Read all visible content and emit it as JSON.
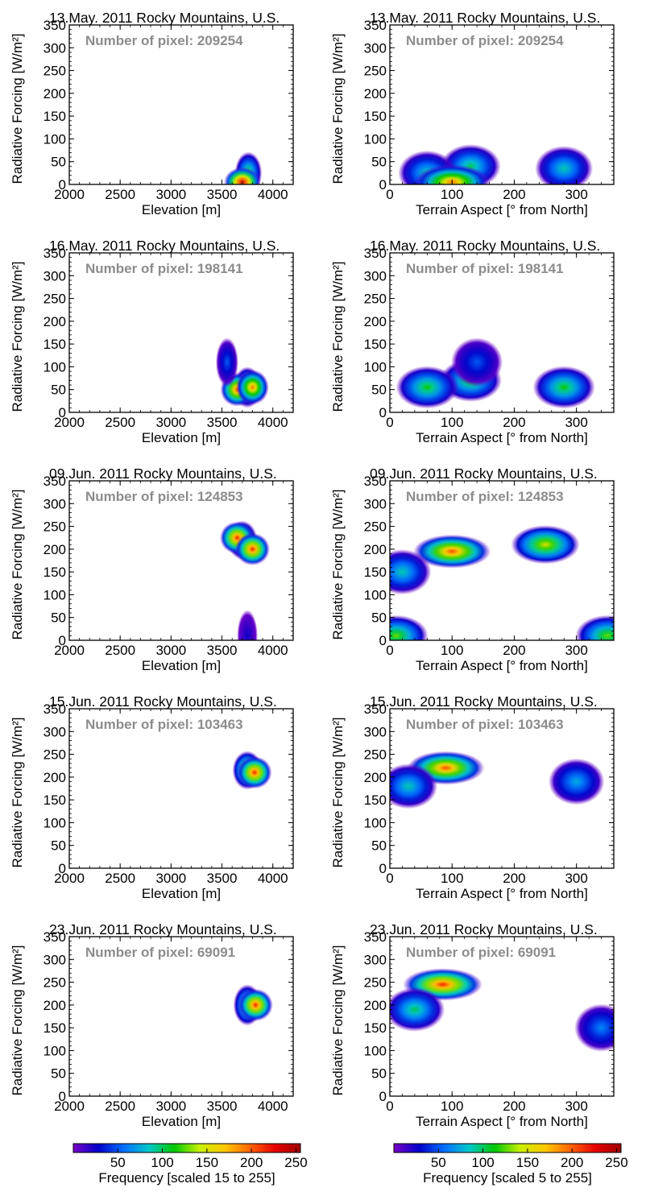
{
  "chart_data": [
    {
      "type": "heatmap",
      "title": "13.May. 2011 Rocky Mountains, U.S.",
      "xlabel": "Elevation [m]",
      "ylabel": "Radiative Forcing [W/m²]",
      "xlim": [
        2000,
        4200
      ],
      "ylim": [
        0,
        350
      ],
      "xticks": [
        2000,
        2500,
        3000,
        3500,
        4000
      ],
      "yticks": [
        0,
        50,
        100,
        150,
        200,
        250,
        300,
        350
      ],
      "annotation": "Number of pixel: 209254",
      "clusters": [
        {
          "x": 3760,
          "y": 25,
          "level": 0.45
        },
        {
          "x": 3700,
          "y": 5,
          "level": 0.95
        }
      ]
    },
    {
      "type": "heatmap",
      "title": "13.May. 2011 Rocky Mountains, U.S.",
      "xlabel": "Terrain Aspect [° from North]",
      "ylabel": "Radiative Forcing [W/m²]",
      "xlim": [
        0,
        360
      ],
      "ylim": [
        0,
        350
      ],
      "xticks": [
        0,
        100,
        200,
        300
      ],
      "yticks": [
        0,
        50,
        100,
        150,
        200,
        250,
        300,
        350
      ],
      "annotation": "Number of pixel: 209254",
      "clusters": [
        {
          "x": 130,
          "y": 40,
          "level": 0.4
        },
        {
          "x": 60,
          "y": 25,
          "level": 0.35
        },
        {
          "x": 280,
          "y": 35,
          "level": 0.35
        },
        {
          "x": 100,
          "y": 5,
          "level": 0.75
        }
      ]
    },
    {
      "type": "heatmap",
      "title": "16.May. 2011 Rocky Mountains, U.S.",
      "xlabel": "Elevation [m]",
      "ylabel": "Radiative Forcing [W/m²]",
      "xlim": [
        2000,
        4200
      ],
      "ylim": [
        0,
        350
      ],
      "xticks": [
        2000,
        2500,
        3000,
        3500,
        4000
      ],
      "yticks": [
        0,
        50,
        100,
        150,
        200,
        250,
        300,
        350
      ],
      "annotation": "Number of pixel: 198141",
      "clusters": [
        {
          "x": 3750,
          "y": 55,
          "level": 0.5
        },
        {
          "x": 3650,
          "y": 50,
          "level": 0.8
        },
        {
          "x": 3800,
          "y": 55,
          "level": 0.75
        },
        {
          "x": 3550,
          "y": 110,
          "level": 0.2
        }
      ]
    },
    {
      "type": "heatmap",
      "title": "16.May. 2011 Rocky Mountains, U.S.",
      "xlabel": "Terrain Aspect [° from North]",
      "ylabel": "Radiative Forcing [W/m²]",
      "xlim": [
        0,
        360
      ],
      "ylim": [
        0,
        350
      ],
      "xticks": [
        0,
        100,
        200,
        300
      ],
      "yticks": [
        0,
        50,
        100,
        150,
        200,
        250,
        300,
        350
      ],
      "annotation": "Number of pixel: 198141",
      "clusters": [
        {
          "x": 130,
          "y": 70,
          "level": 0.45
        },
        {
          "x": 60,
          "y": 55,
          "level": 0.45
        },
        {
          "x": 280,
          "y": 55,
          "level": 0.45
        },
        {
          "x": 140,
          "y": 110,
          "level": 0.2
        }
      ]
    },
    {
      "type": "heatmap",
      "title": "09.Jun. 2011 Rocky Mountains, U.S.",
      "xlabel": "Elevation [m]",
      "ylabel": "Radiative Forcing [W/m²]",
      "xlim": [
        2000,
        4200
      ],
      "ylim": [
        0,
        350
      ],
      "xticks": [
        2000,
        2500,
        3000,
        3500,
        4000
      ],
      "yticks": [
        0,
        50,
        100,
        150,
        200,
        250,
        300,
        350
      ],
      "annotation": "Number of pixel: 124853",
      "clusters": [
        {
          "x": 3700,
          "y": 220,
          "level": 0.6
        },
        {
          "x": 3650,
          "y": 225,
          "level": 0.85
        },
        {
          "x": 3800,
          "y": 200,
          "level": 0.85
        },
        {
          "x": 3750,
          "y": 10,
          "level": 0.1
        }
      ]
    },
    {
      "type": "heatmap",
      "title": "09.Jun. 2011 Rocky Mountains, U.S.",
      "xlabel": "Terrain Aspect [° from North]",
      "ylabel": "Radiative Forcing [W/m²]",
      "xlim": [
        0,
        360
      ],
      "ylim": [
        0,
        350
      ],
      "xticks": [
        0,
        100,
        200,
        300
      ],
      "yticks": [
        0,
        50,
        100,
        150,
        200,
        250,
        300,
        350
      ],
      "annotation": "Number of pixel: 124853",
      "clusters": [
        {
          "x": 100,
          "y": 195,
          "level": 0.8
        },
        {
          "x": 250,
          "y": 210,
          "level": 0.6
        },
        {
          "x": 20,
          "y": 150,
          "level": 0.35
        },
        {
          "x": 10,
          "y": 10,
          "level": 0.5
        },
        {
          "x": 350,
          "y": 10,
          "level": 0.5
        }
      ]
    },
    {
      "type": "heatmap",
      "title": "15.Jun. 2011 Rocky Mountains, U.S.",
      "xlabel": "Elevation [m]",
      "ylabel": "Radiative Forcing [W/m²]",
      "xlim": [
        2000,
        4200
      ],
      "ylim": [
        0,
        350
      ],
      "xticks": [
        2000,
        2500,
        3000,
        3500,
        4000
      ],
      "yticks": [
        0,
        50,
        100,
        150,
        200,
        250,
        300,
        350
      ],
      "annotation": "Number of pixel: 103463",
      "clusters": [
        {
          "x": 3750,
          "y": 215,
          "level": 0.6
        },
        {
          "x": 3820,
          "y": 210,
          "level": 0.85
        }
      ]
    },
    {
      "type": "heatmap",
      "title": "15.Jun. 2011 Rocky Mountains, U.S.",
      "xlabel": "Terrain Aspect [° from North]",
      "ylabel": "Radiative Forcing [W/m²]",
      "xlim": [
        0,
        360
      ],
      "ylim": [
        0,
        350
      ],
      "xticks": [
        0,
        100,
        200,
        300
      ],
      "yticks": [
        0,
        50,
        100,
        150,
        200,
        250,
        300,
        350
      ],
      "annotation": "Number of pixel: 103463",
      "clusters": [
        {
          "x": 90,
          "y": 220,
          "level": 0.8
        },
        {
          "x": 30,
          "y": 180,
          "level": 0.35
        },
        {
          "x": 300,
          "y": 190,
          "level": 0.3
        }
      ]
    },
    {
      "type": "heatmap",
      "title": "23.Jun. 2011 Rocky Mountains, U.S.",
      "xlabel": "Elevation [m]",
      "ylabel": "Radiative Forcing [W/m²]",
      "xlim": [
        2000,
        4200
      ],
      "ylim": [
        0,
        350
      ],
      "xticks": [
        2000,
        2500,
        3000,
        3500,
        4000
      ],
      "yticks": [
        0,
        50,
        100,
        150,
        200,
        250,
        300,
        350
      ],
      "annotation": "Number of pixel: 69091",
      "clusters": [
        {
          "x": 3750,
          "y": 200,
          "level": 0.5
        },
        {
          "x": 3830,
          "y": 200,
          "level": 0.85
        }
      ]
    },
    {
      "type": "heatmap",
      "title": "23.Jun. 2011 Rocky Mountains, U.S.",
      "xlabel": "Terrain Aspect [° from North]",
      "ylabel": "Radiative Forcing [W/m²]",
      "xlim": [
        0,
        360
      ],
      "ylim": [
        0,
        350
      ],
      "xticks": [
        0,
        100,
        200,
        300
      ],
      "yticks": [
        0,
        50,
        100,
        150,
        200,
        250,
        300,
        350
      ],
      "annotation": "Number of pixel: 69091",
      "clusters": [
        {
          "x": 85,
          "y": 245,
          "level": 0.85
        },
        {
          "x": 40,
          "y": 190,
          "level": 0.4
        },
        {
          "x": 340,
          "y": 150,
          "level": 0.25
        }
      ]
    }
  ],
  "colorbars": [
    {
      "label": "Frequency [scaled 15 to 255]",
      "ticks": [
        50,
        100,
        150,
        200,
        250
      ],
      "range": [
        15,
        255
      ]
    },
    {
      "label": "Frequency [scaled 5 to 255]",
      "ticks": [
        50,
        100,
        150,
        200,
        250
      ],
      "range": [
        5,
        255
      ]
    }
  ],
  "colors": {
    "annotation": "#8c8c8c",
    "colormap": [
      "#ffffff",
      "#7a00c8",
      "#0000c8",
      "#0070ff",
      "#00c8c8",
      "#00c800",
      "#c8f000",
      "#ffc800",
      "#ff6400",
      "#e60000",
      "#a00000"
    ]
  }
}
